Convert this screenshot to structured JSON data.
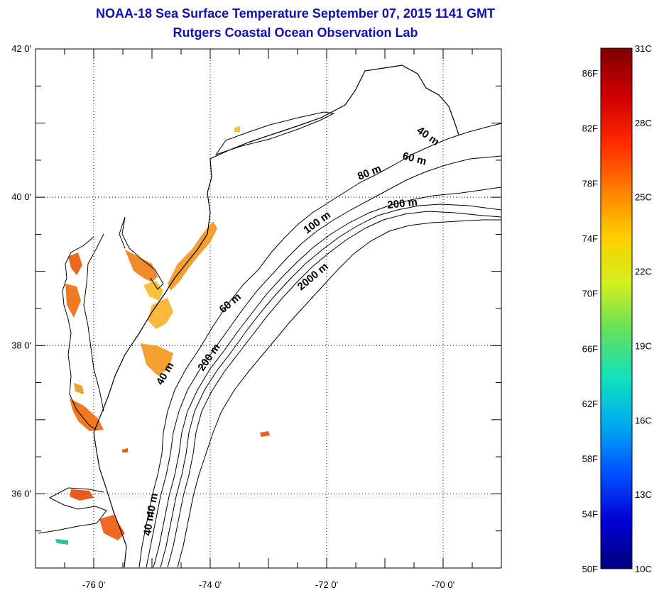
{
  "title": "NOAA-18 Sea Surface Temperature September 07, 2015 1141 GMT",
  "subtitle": "Rutgers Coastal Ocean Observation Lab",
  "map": {
    "lon_range": [
      -77,
      -69
    ],
    "lat_range": [
      35,
      42
    ],
    "lon_ticks": [
      {
        "value": -76,
        "label": "-76 0'"
      },
      {
        "value": -74,
        "label": "-74 0'"
      },
      {
        "value": -72,
        "label": "-72 0'"
      },
      {
        "value": -70,
        "label": "-70 0'"
      }
    ],
    "lat_ticks": [
      {
        "value": 42,
        "label": "42 0'"
      },
      {
        "value": 40,
        "label": "40 0'"
      },
      {
        "value": 38,
        "label": "38 0'"
      },
      {
        "value": 36,
        "label": "36 0'"
      }
    ],
    "grid": "dotted",
    "contour_labels": [
      "40 m",
      "60 m",
      "80 m",
      "100 m",
      "200 m",
      "2000 m"
    ]
  },
  "colorbar": {
    "left_labels": [
      "86F",
      "82F",
      "78F",
      "74F",
      "70F",
      "66F",
      "62F",
      "58F",
      "54F",
      "50F"
    ],
    "right_labels": [
      "31C",
      "28C",
      "25C",
      "22C",
      "19C",
      "16C",
      "13C",
      "10C"
    ],
    "colors": [
      "#800000",
      "#cc0000",
      "#ff2a00",
      "#ff7f00",
      "#ffd000",
      "#d0f020",
      "#60e060",
      "#10e0c0",
      "#00a8f0",
      "#0050ff",
      "#0000d0",
      "#00007f"
    ]
  },
  "colors": {
    "title": "#1010b0",
    "coast": "#000000",
    "sst_warm": "#f07a20"
  }
}
